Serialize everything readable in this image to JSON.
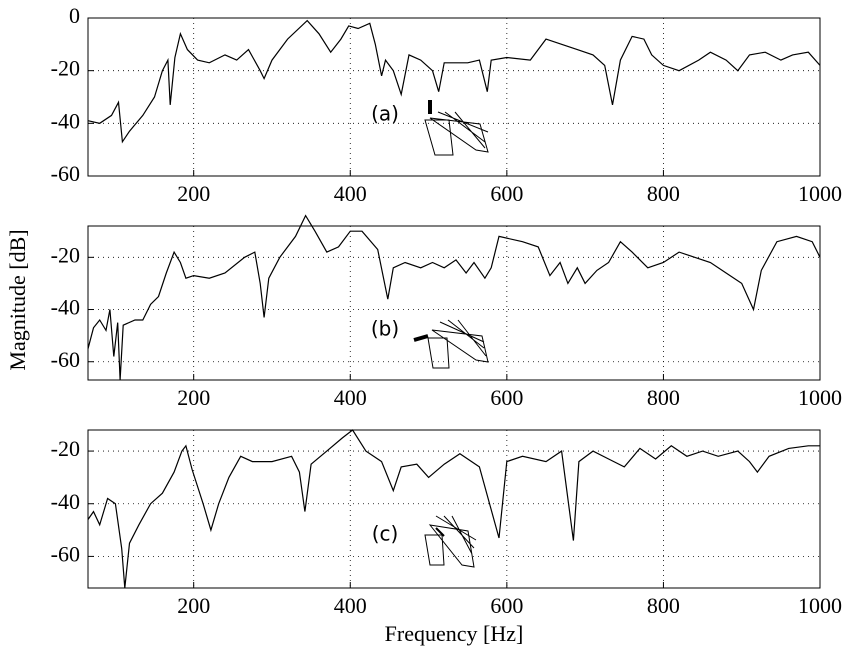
{
  "chart_data": [
    {
      "type": "line",
      "annotation": "(a)",
      "color": "#000000",
      "grid": true,
      "xlim": [
        65,
        1000
      ],
      "xticks": [
        200,
        400,
        600,
        800,
        1000
      ],
      "ylim": [
        -60,
        0
      ],
      "yticks": [
        -60,
        -40,
        -20,
        0
      ],
      "x": [
        65,
        80,
        95,
        104,
        109,
        118,
        135,
        150,
        160,
        167,
        170,
        176,
        183,
        192,
        205,
        220,
        240,
        255,
        270,
        285,
        290,
        300,
        320,
        345,
        360,
        375,
        388,
        398,
        410,
        425,
        432,
        440,
        445,
        455,
        465,
        475,
        490,
        505,
        513,
        520,
        550,
        565,
        575,
        580,
        600,
        630,
        650,
        670,
        690,
        710,
        725,
        735,
        745,
        760,
        775,
        785,
        800,
        820,
        845,
        860,
        880,
        895,
        910,
        930,
        950,
        965,
        985,
        1000
      ],
      "values": [
        -39,
        -40,
        -37,
        -32,
        -47,
        -43,
        -37,
        -30,
        -20,
        -16,
        -33,
        -15,
        -6,
        -12,
        -16,
        -17,
        -14,
        -16,
        -12,
        -20,
        -23,
        -16,
        -8,
        -1,
        -6,
        -13,
        -8,
        -3,
        -4,
        -2,
        -10,
        -22,
        -16,
        -20,
        -29,
        -14,
        -16,
        -20,
        -28,
        -17,
        -17,
        -16,
        -28,
        -16,
        -15,
        -16,
        -8,
        -10,
        -12,
        -14,
        -18,
        -33,
        -16,
        -7,
        -8,
        -14,
        -18,
        -20,
        -16,
        -13,
        -16,
        -20,
        -14,
        -13,
        -16,
        -14,
        -13,
        -18
      ]
    },
    {
      "type": "line",
      "annotation": "(b)",
      "color": "#000000",
      "grid": true,
      "ylabel": "Magnitude [dB]",
      "xlim": [
        65,
        1000
      ],
      "xticks": [
        200,
        400,
        600,
        800,
        1000
      ],
      "ylim": [
        -67,
        -8
      ],
      "yticks": [
        -60,
        -40,
        -20
      ],
      "x": [
        65,
        72,
        80,
        88,
        93,
        98,
        103,
        106,
        110,
        125,
        135,
        145,
        155,
        165,
        175,
        183,
        190,
        200,
        220,
        240,
        265,
        278,
        285,
        290,
        296,
        310,
        330,
        343,
        355,
        370,
        385,
        400,
        415,
        435,
        448,
        455,
        470,
        490,
        505,
        520,
        535,
        548,
        558,
        572,
        580,
        590,
        620,
        640,
        655,
        668,
        678,
        690,
        700,
        715,
        730,
        745,
        760,
        780,
        800,
        820,
        840,
        860,
        880,
        900,
        915,
        925,
        945,
        970,
        990,
        1000
      ],
      "values": [
        -55,
        -47,
        -44,
        -48,
        -40,
        -58,
        -45,
        -67,
        -46,
        -44,
        -44,
        -38,
        -35,
        -26,
        -18,
        -22,
        -28,
        -27,
        -28,
        -26,
        -20,
        -18,
        -30,
        -43,
        -28,
        -20,
        -12,
        -4,
        -10,
        -18,
        -16,
        -10,
        -10,
        -17,
        -36,
        -24,
        -22,
        -24,
        -22,
        -24,
        -21,
        -26,
        -22,
        -28,
        -24,
        -12,
        -14,
        -16,
        -27,
        -22,
        -30,
        -24,
        -30,
        -25,
        -22,
        -14,
        -18,
        -24,
        -22,
        -18,
        -20,
        -22,
        -26,
        -30,
        -40,
        -25,
        -14,
        -12,
        -14,
        -20
      ]
    },
    {
      "type": "line",
      "annotation": "(c)",
      "color": "#000000",
      "grid": true,
      "xlabel": "Frequency [Hz]",
      "xlim": [
        65,
        1000
      ],
      "xticks": [
        200,
        400,
        600,
        800,
        1000
      ],
      "ylim": [
        -72,
        -12
      ],
      "yticks": [
        -60,
        -40,
        -20
      ],
      "x": [
        65,
        72,
        80,
        90,
        100,
        108,
        112,
        118,
        130,
        145,
        160,
        175,
        185,
        190,
        198,
        212,
        222,
        232,
        245,
        260,
        275,
        300,
        325,
        335,
        342,
        350,
        370,
        390,
        403,
        420,
        440,
        455,
        465,
        485,
        500,
        520,
        540,
        565,
        590,
        600,
        620,
        650,
        670,
        685,
        692,
        710,
        730,
        750,
        770,
        790,
        810,
        830,
        850,
        870,
        895,
        910,
        920,
        935,
        960,
        985,
        1000
      ],
      "values": [
        -46,
        -43,
        -48,
        -38,
        -40,
        -57,
        -72,
        -55,
        -48,
        -40,
        -36,
        -28,
        -20,
        -18,
        -27,
        -40,
        -50,
        -40,
        -30,
        -22,
        -24,
        -24,
        -22,
        -28,
        -43,
        -25,
        -20,
        -15,
        -12,
        -20,
        -24,
        -35,
        -26,
        -25,
        -30,
        -25,
        -21,
        -26,
        -53,
        -24,
        -22,
        -24,
        -20,
        -54,
        -24,
        -20,
        -23,
        -26,
        -19,
        -23,
        -18,
        -22,
        -20,
        -22,
        -20,
        -24,
        -28,
        -22,
        -19,
        -18,
        -18
      ]
    }
  ]
}
